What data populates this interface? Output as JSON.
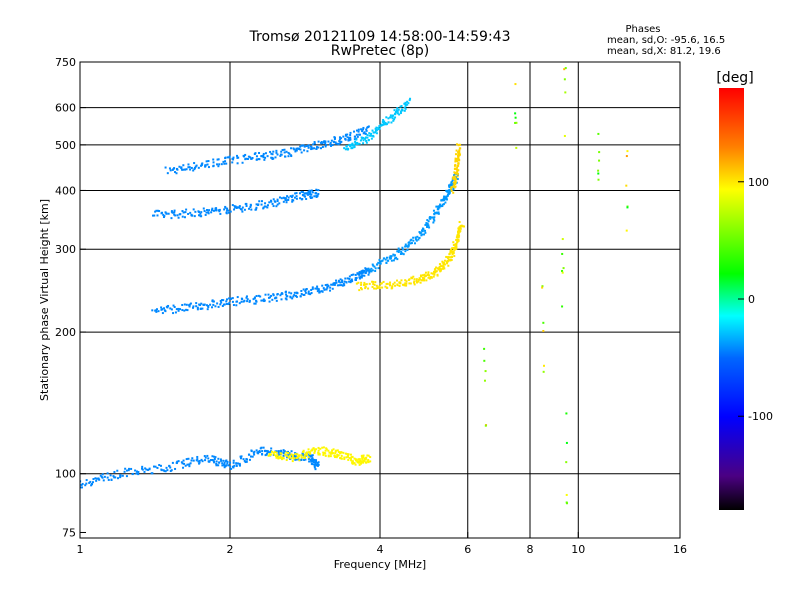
{
  "chart_data": {
    "type": "scatter",
    "title": "Tromsø 20121109 14:58:00-14:59:43",
    "subtitle": "RwPretec (8p)",
    "xlabel": "Frequency [MHz]",
    "ylabel": "Stationary phase Virtual Height [km]",
    "x_scale": "log",
    "y_scale": "log",
    "xlim": [
      1,
      16
    ],
    "ylim": [
      73,
      750
    ],
    "x_ticks": [
      1,
      2,
      4,
      6,
      8,
      10,
      16
    ],
    "x_tick_labels": [
      "1",
      "2",
      "4",
      "6",
      "8",
      "10",
      "16"
    ],
    "x_grid": [
      2,
      4,
      6,
      8,
      10
    ],
    "y_ticks": [
      75,
      100,
      200,
      300,
      400,
      500,
      600,
      750
    ],
    "y_tick_labels": [
      "75",
      "100",
      "200",
      "300",
      "400",
      "500",
      "600",
      "750"
    ],
    "y_grid": [
      100,
      200,
      300,
      400,
      500,
      600
    ],
    "grid": true,
    "colorbar": {
      "label": "[deg]",
      "min": -180,
      "max": 180,
      "ticks": [
        100,
        0,
        -100
      ],
      "tick_labels": [
        "100",
        "0",
        "-100"
      ]
    },
    "stats": {
      "heading": "Phases",
      "line_o": "mean, sd,O: -95.6, 16.5",
      "line_x": "mean, sd,X:  81.2, 19.6"
    },
    "traces": [
      {
        "x": [
          1.5,
          1.8,
          2.2,
          2.6,
          3.0,
          3.4,
          3.8
        ],
        "y": [
          440,
          455,
          470,
          480,
          500,
          515,
          540
        ],
        "phase": -110
      },
      {
        "x": [
          3.4,
          3.8,
          4.2,
          4.6
        ],
        "y": [
          490,
          520,
          570,
          620
        ],
        "phase": -90
      },
      {
        "x": [
          1.4,
          1.7,
          2.0,
          2.4,
          2.8,
          3.0
        ],
        "y": [
          355,
          358,
          365,
          375,
          390,
          395
        ],
        "phase": -110
      },
      {
        "x": [
          1.4,
          1.7,
          2.0,
          2.4,
          2.8,
          3.2,
          3.6,
          3.8
        ],
        "y": [
          222,
          226,
          232,
          236,
          242,
          250,
          262,
          270
        ],
        "phase": -110
      },
      {
        "x": [
          3.8,
          4.3,
          4.8,
          5.2,
          5.5,
          5.7
        ],
        "y": [
          272,
          290,
          320,
          360,
          400,
          430
        ],
        "phase": -105
      },
      {
        "x": [
          3.6,
          4.2,
          4.8,
          5.2,
          5.5,
          5.7,
          5.85
        ],
        "y": [
          250,
          252,
          258,
          268,
          285,
          310,
          340
        ],
        "phase": 95
      },
      {
        "x": [
          5.6,
          5.7,
          5.75
        ],
        "y": [
          400,
          450,
          500
        ],
        "phase": 100
      },
      {
        "x": [
          1.0,
          1.2,
          1.5,
          1.8,
          2.0,
          2.3,
          2.6,
          2.9,
          3.0
        ],
        "y": [
          95,
          100,
          103,
          108,
          104,
          112,
          110,
          108,
          104
        ],
        "phase": -110
      },
      {
        "x": [
          2.4,
          2.7,
          3.0,
          3.3,
          3.6,
          3.8
        ],
        "y": [
          110,
          108,
          112,
          110,
          106,
          108
        ],
        "phase": 90
      },
      {
        "x": [
          6.5,
          7.5,
          8.5,
          9.3,
          9.4,
          9.5,
          11.0,
          12.5
        ],
        "y": [
          150,
          560,
          200,
          250,
          600,
          110,
          440,
          420
        ],
        "phase": 60
      }
    ]
  }
}
